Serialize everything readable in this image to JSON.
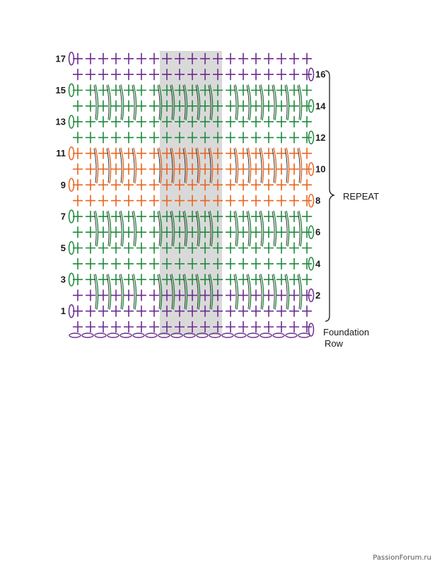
{
  "diagram": {
    "rows": [
      {
        "n": 1,
        "color": "purple",
        "label": "1",
        "side": "left",
        "posts": false
      },
      {
        "n": 2,
        "color": "purple",
        "label": "2",
        "side": "right",
        "posts": false
      },
      {
        "n": 3,
        "color": "green",
        "label": "3",
        "side": "left",
        "posts": true
      },
      {
        "n": 4,
        "color": "green",
        "label": "4",
        "side": "right",
        "posts": false
      },
      {
        "n": 5,
        "color": "green",
        "label": "5",
        "side": "left",
        "posts": false
      },
      {
        "n": 6,
        "color": "green",
        "label": "6",
        "side": "right",
        "posts": false
      },
      {
        "n": 7,
        "color": "green",
        "label": "7",
        "side": "left",
        "posts": true
      },
      {
        "n": 8,
        "color": "orange",
        "label": "8",
        "side": "right",
        "posts": false
      },
      {
        "n": 9,
        "color": "orange",
        "label": "9",
        "side": "left",
        "posts": false
      },
      {
        "n": 10,
        "color": "orange",
        "label": "10",
        "side": "right",
        "posts": false
      },
      {
        "n": 11,
        "color": "orange",
        "label": "11",
        "side": "left",
        "posts": true
      },
      {
        "n": 12,
        "color": "green",
        "label": "12",
        "side": "right",
        "posts": false
      },
      {
        "n": 13,
        "color": "green",
        "label": "13",
        "side": "left",
        "posts": false
      },
      {
        "n": 14,
        "color": "green",
        "label": "14",
        "side": "right",
        "posts": false
      },
      {
        "n": 15,
        "color": "green",
        "label": "15",
        "side": "left",
        "posts": true
      },
      {
        "n": 16,
        "color": "purple",
        "label": "16",
        "side": "right",
        "posts": false
      },
      {
        "n": 17,
        "color": "purple",
        "label": "17",
        "side": "left",
        "posts": false
      }
    ],
    "stitches_per_row": 19,
    "repeat_label": "REPEAT",
    "foundation_label_line1": "Foundation",
    "foundation_label_line2": "Row",
    "colors": {
      "purple": "#6b2c8f",
      "green": "#1e8a3c",
      "orange": "#e8651e",
      "highlight": "#d9d9d9",
      "ink": "#1a1a1a"
    }
  },
  "watermark": "PassionForum.ru"
}
